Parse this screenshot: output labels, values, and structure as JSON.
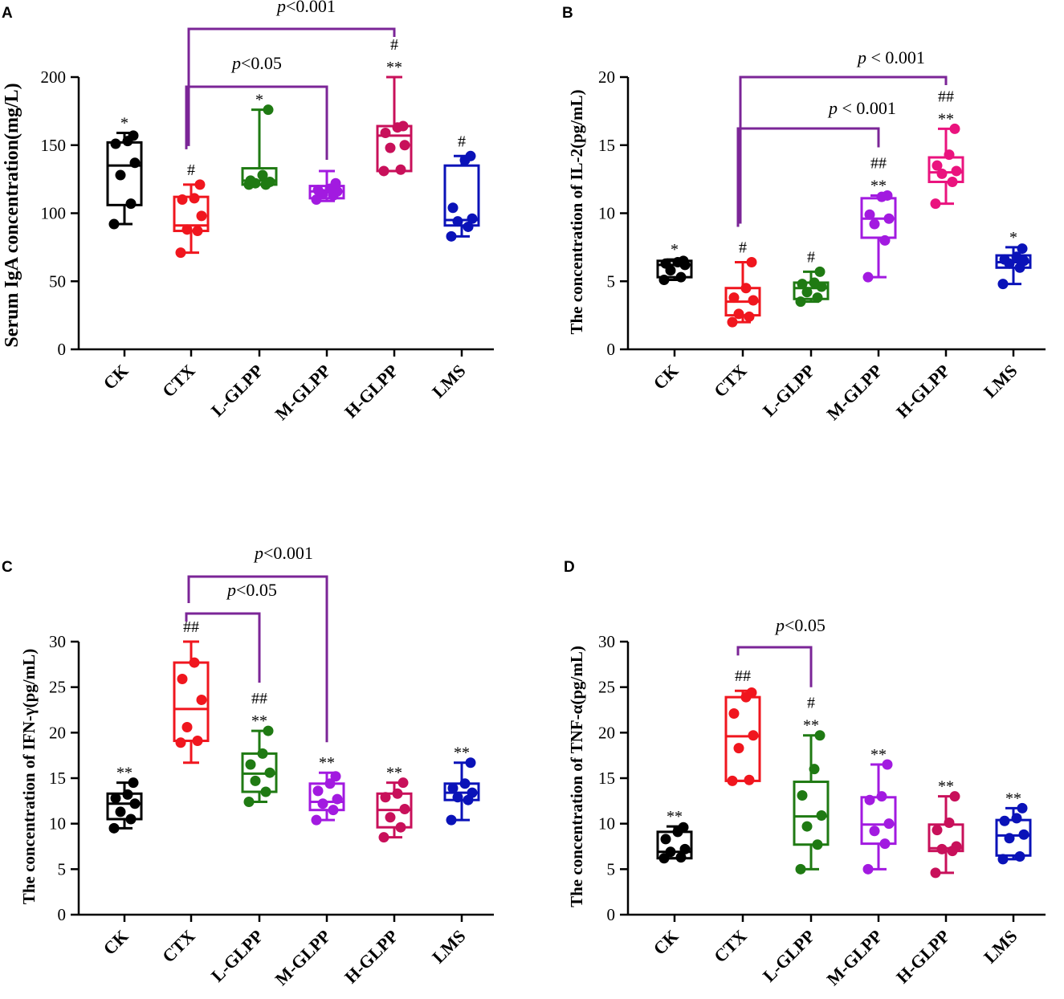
{
  "chart_data": [
    {
      "panel": "A",
      "type": "box",
      "ylabel": "Serum IgA concentration(mg/L)",
      "ylim": [
        0,
        200
      ],
      "yticks": [
        0,
        50,
        100,
        150,
        200
      ],
      "categories": [
        "CK",
        "CTX",
        "L-GLPP",
        "M-GLPP",
        "H-GLPP",
        "LMS"
      ],
      "colors": [
        "#000000",
        "#f0161e",
        "#1f7a13",
        "#a21ae0",
        "#c8105a",
        "#0a12b8"
      ],
      "series": [
        {
          "name": "CK",
          "min": 92,
          "q1": 106,
          "median": 135,
          "q3": 152,
          "max": 159,
          "points": [
            92,
            107,
            128,
            137,
            151,
            153,
            157
          ],
          "sig": "*"
        },
        {
          "name": "CTX",
          "min": 71,
          "q1": 87,
          "median": 91,
          "q3": 112,
          "max": 121,
          "points": [
            71,
            87,
            88,
            98,
            110,
            111,
            121
          ],
          "sig": "#"
        },
        {
          "name": "L-GLPP",
          "min": 121,
          "q1": 121,
          "median": 124,
          "q3": 133,
          "max": 176,
          "points": [
            121,
            121,
            122,
            123,
            124,
            128,
            176
          ],
          "sig": "*"
        },
        {
          "name": "M-GLPP",
          "min": 109,
          "q1": 111,
          "median": 116,
          "q3": 120,
          "max": 131,
          "points": [
            110,
            113,
            114,
            116,
            117,
            118,
            122
          ],
          "sig": ""
        },
        {
          "name": "H-GLPP",
          "min": 131,
          "q1": 131,
          "median": 157,
          "q3": 164,
          "max": 200,
          "points": [
            131,
            132,
            148,
            150,
            159,
            163,
            164
          ],
          "sig": "#\n**"
        },
        {
          "name": "LMS",
          "min": 83,
          "q1": 91,
          "median": 95,
          "q3": 135,
          "max": 142,
          "points": [
            83,
            90,
            94,
            96,
            104,
            139,
            142
          ],
          "sig": "#"
        }
      ],
      "comparisons": [
        {
          "from": "CTX",
          "to": "M-GLPP",
          "label": "p<0.05"
        },
        {
          "from": "CTX",
          "to": "H-GLPP",
          "label": "p<0.001"
        }
      ]
    },
    {
      "panel": "B",
      "type": "box",
      "ylabel": "The concentration of IL-2(pg/mL)",
      "ylim": [
        0,
        20
      ],
      "yticks": [
        0,
        5,
        10,
        15,
        20
      ],
      "categories": [
        "CK",
        "CTX",
        "L-GLPP",
        "M-GLPP",
        "H-GLPP",
        "LMS"
      ],
      "colors": [
        "#000000",
        "#f0161e",
        "#1f7a13",
        "#a21ae0",
        "#ea137e",
        "#0a12b8"
      ],
      "series": [
        {
          "name": "CK",
          "min": 5.1,
          "q1": 5.3,
          "median": 6.2,
          "q3": 6.5,
          "max": 6.6,
          "points": [
            5.1,
            5.3,
            5.8,
            6.2,
            6.3,
            6.4,
            6.5
          ],
          "sig": "*"
        },
        {
          "name": "CTX",
          "min": 2.0,
          "q1": 2.5,
          "median": 3.5,
          "q3": 4.5,
          "max": 6.4,
          "points": [
            2.0,
            2.4,
            2.6,
            3.6,
            3.8,
            4.5,
            6.4
          ],
          "sig": "#"
        },
        {
          "name": "L-GLPP",
          "min": 3.5,
          "q1": 3.7,
          "median": 4.5,
          "q3": 4.9,
          "max": 5.7,
          "points": [
            3.5,
            3.8,
            4.2,
            4.6,
            4.8,
            4.9,
            5.7
          ],
          "sig": "#"
        },
        {
          "name": "M-GLPP",
          "min": 5.3,
          "q1": 8.2,
          "median": 9.6,
          "q3": 11.1,
          "max": 11.3,
          "points": [
            5.3,
            8.0,
            9.2,
            9.6,
            9.9,
            11.2,
            11.3
          ],
          "sig": "##\n**"
        },
        {
          "name": "H-GLPP",
          "min": 10.7,
          "q1": 12.3,
          "median": 13.0,
          "q3": 14.1,
          "max": 16.2,
          "points": [
            10.7,
            12.3,
            12.9,
            13.1,
            13.5,
            14.3,
            16.2
          ],
          "sig": "##\n**"
        },
        {
          "name": "LMS",
          "min": 4.8,
          "q1": 6.0,
          "median": 6.4,
          "q3": 6.9,
          "max": 7.5,
          "points": [
            4.8,
            6.0,
            6.3,
            6.5,
            6.6,
            6.8,
            7.4
          ],
          "sig": "*"
        }
      ],
      "comparisons": [
        {
          "from": "CTX",
          "to": "M-GLPP",
          "label": "p < 0.001"
        },
        {
          "from": "CTX",
          "to": "H-GLPP",
          "label": "p < 0.001"
        }
      ]
    },
    {
      "panel": "C",
      "type": "box",
      "ylabel": "The concentration of IFN-γ(pg/mL)",
      "ylim": [
        0,
        30
      ],
      "yticks": [
        0,
        5,
        10,
        15,
        20,
        25,
        30
      ],
      "categories": [
        "CK",
        "CTX",
        "L-GLPP",
        "M-GLPP",
        "H-GLPP",
        "LMS"
      ],
      "colors": [
        "#000000",
        "#f0161e",
        "#1f7a13",
        "#a21ae0",
        "#c8105a",
        "#0a12b8"
      ],
      "series": [
        {
          "name": "CK",
          "min": 9.5,
          "q1": 10.5,
          "median": 12.2,
          "q3": 13.3,
          "max": 14.5,
          "points": [
            9.5,
            10.5,
            11.3,
            12.2,
            12.8,
            13.2,
            14.5
          ],
          "sig": "**"
        },
        {
          "name": "CTX",
          "min": 16.7,
          "q1": 19.1,
          "median": 22.6,
          "q3": 27.7,
          "max": 30.0,
          "points": [
            18.9,
            19.1,
            20.6,
            23.6,
            25.9,
            27.7
          ],
          "sig": "##"
        },
        {
          "name": "L-GLPP",
          "min": 12.4,
          "q1": 13.5,
          "median": 15.5,
          "q3": 17.7,
          "max": 20.2,
          "points": [
            12.4,
            13.5,
            14.7,
            15.6,
            16.5,
            17.7,
            20.2
          ],
          "sig": "##\n**"
        },
        {
          "name": "M-GLPP",
          "min": 10.4,
          "q1": 11.5,
          "median": 12.4,
          "q3": 14.4,
          "max": 15.6,
          "points": [
            10.4,
            11.5,
            12.2,
            12.7,
            13.6,
            14.4,
            15.2
          ],
          "sig": "**"
        },
        {
          "name": "H-GLPP",
          "min": 8.5,
          "q1": 9.6,
          "median": 11.5,
          "q3": 13.3,
          "max": 14.5,
          "points": [
            8.5,
            9.6,
            10.7,
            11.6,
            12.9,
            13.3,
            14.5
          ],
          "sig": "**"
        },
        {
          "name": "LMS",
          "min": 10.4,
          "q1": 12.6,
          "median": 13.4,
          "q3": 14.4,
          "max": 16.7,
          "points": [
            10.4,
            12.6,
            12.9,
            13.4,
            13.9,
            14.4,
            16.7
          ],
          "sig": "**"
        }
      ],
      "comparisons": [
        {
          "from": "CTX",
          "to": "L-GLPP",
          "label": "p<0.05"
        },
        {
          "from": "CTX",
          "to": "M-GLPP",
          "label": "p<0.001"
        }
      ]
    },
    {
      "panel": "D",
      "type": "box",
      "ylabel": "The concentration of TNF-α(pg/mL)",
      "ylim": [
        0,
        30
      ],
      "yticks": [
        0,
        5,
        10,
        15,
        20,
        25,
        30
      ],
      "categories": [
        "CK",
        "CTX",
        "L-GLPP",
        "M-GLPP",
        "H-GLPP",
        "LMS"
      ],
      "colors": [
        "#000000",
        "#f0161e",
        "#1f7a13",
        "#a21ae0",
        "#c8105a",
        "#0a12b8"
      ],
      "series": [
        {
          "name": "CK",
          "min": 6.2,
          "q1": 6.2,
          "median": 6.9,
          "q3": 9.1,
          "max": 9.7,
          "points": [
            6.2,
            6.3,
            6.9,
            7.2,
            8.3,
            9.1,
            9.6
          ],
          "sig": "**"
        },
        {
          "name": "CTX",
          "min": 14.7,
          "q1": 14.7,
          "median": 19.6,
          "q3": 23.9,
          "max": 24.6,
          "points": [
            14.7,
            14.8,
            18.3,
            19.7,
            22.1,
            23.9,
            24.4
          ],
          "sig": "##"
        },
        {
          "name": "L-GLPP",
          "min": 5.0,
          "q1": 7.7,
          "median": 10.8,
          "q3": 14.6,
          "max": 19.7,
          "points": [
            5.0,
            7.7,
            9.7,
            10.9,
            13.1,
            16.0,
            19.7
          ],
          "sig": "#\n**"
        },
        {
          "name": "M-GLPP",
          "min": 5.0,
          "q1": 7.8,
          "median": 9.9,
          "q3": 12.9,
          "max": 16.5,
          "points": [
            5.0,
            7.8,
            9.2,
            10.0,
            12.6,
            13.0,
            16.5
          ],
          "sig": "**"
        },
        {
          "name": "H-GLPP",
          "min": 4.6,
          "q1": 7.0,
          "median": 7.3,
          "q3": 9.9,
          "max": 13.0,
          "points": [
            4.6,
            7.0,
            7.2,
            7.5,
            9.3,
            10.1,
            13.0
          ],
          "sig": "**"
        },
        {
          "name": "LMS",
          "min": 6.1,
          "q1": 6.5,
          "median": 8.7,
          "q3": 10.4,
          "max": 11.7,
          "points": [
            6.1,
            6.4,
            8.4,
            8.8,
            10.3,
            10.6,
            11.7
          ],
          "sig": "**"
        }
      ],
      "comparisons": [
        {
          "from": "CTX",
          "to": "L-GLPP",
          "label": "p<0.05"
        }
      ]
    }
  ],
  "bracket_color": "#7b2597"
}
